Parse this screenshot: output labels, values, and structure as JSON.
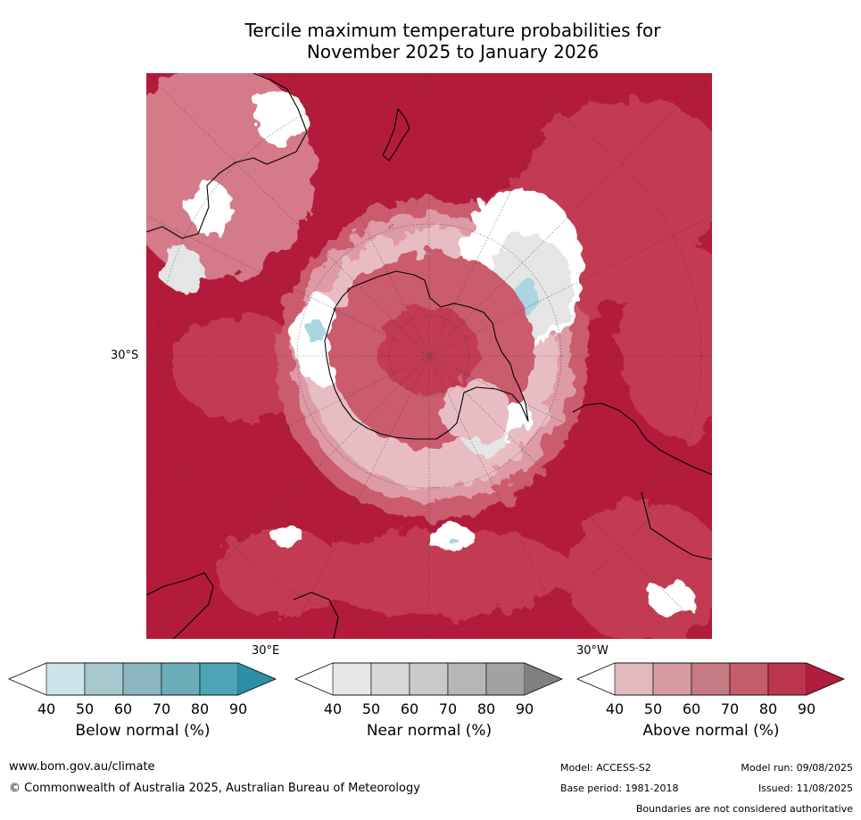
{
  "title": {
    "line1": "Tercile maximum temperature probabilities for",
    "line2": "November 2025 to January 2026"
  },
  "map": {
    "projection": "south-polar-stereographic",
    "lat_label": "30°S",
    "lon_label_left": "30°E",
    "lon_label_right": "30°W",
    "colors": {
      "above_90": "#b31b3b",
      "above_80": "#c23a52",
      "above_70": "#cb5b6d",
      "above_60": "#d57a88",
      "above_50": "#de9aa5",
      "above_40": "#e8bcc3",
      "near": "#e5e5e5",
      "near_light": "#ffffff",
      "below": "#a9d6e0",
      "land_outline": "#000000"
    }
  },
  "legends": [
    {
      "name": "Below normal (%)",
      "ticks": [
        "40",
        "50",
        "60",
        "70",
        "80",
        "90"
      ],
      "colors": [
        "#ffffff",
        "#cde3ea",
        "#a8c8cf",
        "#8bb6bf",
        "#6badb9",
        "#4ca4b4",
        "#2b8fa5"
      ]
    },
    {
      "name": "Near normal (%)",
      "ticks": [
        "40",
        "50",
        "60",
        "70",
        "80",
        "90"
      ],
      "colors": [
        "#ffffff",
        "#e6e6e6",
        "#d8d8d8",
        "#c9c9c9",
        "#b6b6b6",
        "#a2a2a2",
        "#808080"
      ]
    },
    {
      "name": "Above normal (%)",
      "ticks": [
        "40",
        "50",
        "60",
        "70",
        "80",
        "90"
      ],
      "colors": [
        "#ffffff",
        "#e3b9be",
        "#d69ba1",
        "#c87a82",
        "#c45e6b",
        "#bd3650",
        "#b11d3c"
      ]
    }
  ],
  "footer": {
    "url": "www.bom.gov.au/climate",
    "copyright": "© Commonwealth of Australia 2025, Australian Bureau of Meteorology",
    "model": "Model: ACCESS-S2",
    "base_period": "Base period: 1981-2018",
    "model_run": "Model run: 09/08/2025",
    "issued": "Issued: 11/08/2025",
    "disclaimer": "Boundaries are not considered authoritative"
  }
}
